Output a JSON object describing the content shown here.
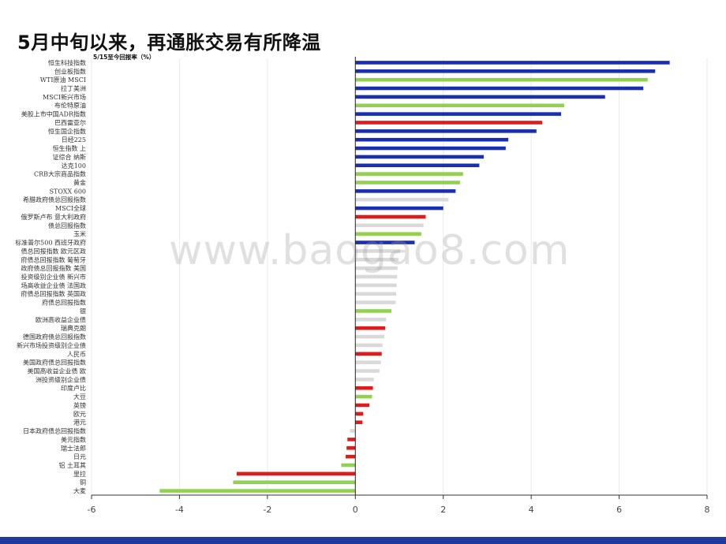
{
  "slide": {
    "title": "5月中旬以来，再通胀交易有所降温",
    "watermark": "www.baogao8.com"
  },
  "colors": {
    "blue": "#1a2fb0",
    "green": "#92d050",
    "red": "#e01b1b",
    "gray": "#d9d9d9",
    "footer": "#1d3a9c"
  },
  "chart_data": {
    "type": "bar",
    "orientation": "horizontal",
    "title": "5/15至今回报率（%）",
    "xlim": [
      -6,
      8
    ],
    "ticks": [
      -6,
      -4,
      -2,
      0,
      2,
      4,
      6,
      8
    ],
    "grid": true,
    "legend": "none",
    "categories": [
      "恒生科技指数",
      "创业板指数",
      "WTI原油 MSCI",
      "拉丁美洲",
      "MSCI新兴市场",
      "布伦特原油",
      "美股上市中国ADR指数",
      "巴西雷亚尔",
      "恒生国企指数",
      "日经225",
      "恒生指数 上",
      "证综合 纳斯",
      "达克100",
      "CRB大宗商品指数",
      "黄金",
      "STOXX 600",
      "希腊政府债总回报指数",
      "MSCI全球",
      "俄罗斯卢布 意大利政府",
      "债总回报指数",
      "玉米",
      "标准普尔500 西班牙政府",
      "债总回报指数 欧元区政",
      "府债总回报指数 葡萄牙",
      "政府债总回报指数 美国",
      "投资级别企业债 新兴市",
      "场高收益企业债 法国政",
      "府债总回报指数 英国政",
      "府债总回报指数",
      "银",
      "欧洲高收益企业债",
      "瑞典克朗",
      "德国政府债总回报指数",
      "新兴市场投资级别企业债",
      "人民币",
      "美国政府债总回报指数",
      "美国高收益企业债 欧",
      "洲投资级别企业债",
      "印度卢比",
      "大豆",
      "英镑",
      "欧元",
      "港元",
      "日本政府债总回报指数",
      "美元指数",
      "瑞士法郎",
      "日元",
      "铝 土耳其",
      "里拉",
      "铜",
      "大麦"
    ],
    "values": [
      7.15,
      6.82,
      6.65,
      6.55,
      5.68,
      4.75,
      4.68,
      4.25,
      4.12,
      3.48,
      3.42,
      2.92,
      2.82,
      2.45,
      2.38,
      2.28,
      2.12,
      2.0,
      1.6,
      1.55,
      1.5,
      1.35,
      1.02,
      0.98,
      0.96,
      0.95,
      0.94,
      0.93,
      0.92,
      0.82,
      0.7,
      0.68,
      0.66,
      0.62,
      0.6,
      0.58,
      0.55,
      0.42,
      0.4,
      0.38,
      0.32,
      0.18,
      0.16,
      -0.12,
      -0.18,
      -0.2,
      -0.22,
      -0.32,
      -2.7,
      -2.78,
      -4.45
    ],
    "bar_colors": [
      "blue",
      "blue",
      "green",
      "blue",
      "blue",
      "green",
      "blue",
      "red",
      "blue",
      "blue",
      "blue",
      "blue",
      "blue",
      "green",
      "green",
      "blue",
      "gray",
      "blue",
      "red",
      "gray",
      "green",
      "blue",
      "gray",
      "gray",
      "gray",
      "gray",
      "gray",
      "gray",
      "gray",
      "green",
      "gray",
      "red",
      "gray",
      "gray",
      "red",
      "gray",
      "gray",
      "gray",
      "red",
      "green",
      "red",
      "red",
      "red",
      "gray",
      "red",
      "red",
      "red",
      "green",
      "red",
      "green",
      "green"
    ]
  }
}
